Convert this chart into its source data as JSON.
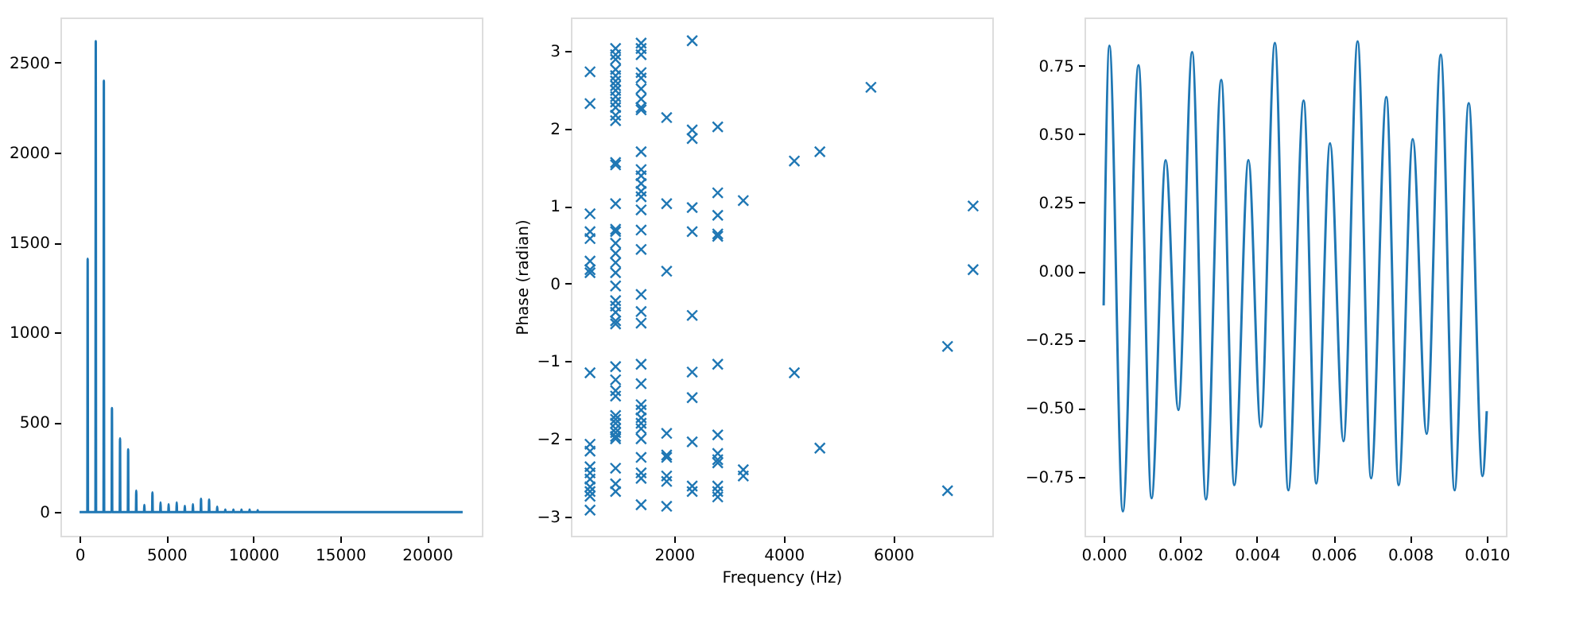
{
  "chart_data": [
    {
      "type": "line",
      "color": "#1f77b4",
      "marker": "none",
      "line_style": "solid",
      "grid": false,
      "x": [
        0,
        446,
        466,
        486,
        912,
        932,
        952,
        1378,
        1398,
        1418,
        1844,
        1864,
        1884,
        2310,
        2330,
        2350,
        2776,
        2796,
        2816,
        3242,
        3262,
        3282,
        3708,
        3728,
        3748,
        4174,
        4194,
        4214,
        4640,
        4660,
        4680,
        5106,
        5126,
        5146,
        5572,
        5592,
        5612,
        6038,
        6058,
        6078,
        6504,
        6524,
        6544,
        6970,
        6990,
        7010,
        7436,
        7456,
        7476,
        7902,
        7922,
        7942,
        8368,
        8388,
        8408,
        8834,
        8854,
        8874,
        9300,
        9320,
        9340,
        9766,
        9786,
        9806,
        10232,
        10252,
        10272,
        22050
      ],
      "values": [
        0,
        0,
        1410,
        0,
        0,
        2620,
        0,
        0,
        2400,
        0,
        0,
        580,
        0,
        0,
        410,
        0,
        0,
        350,
        0,
        0,
        120,
        0,
        0,
        40,
        0,
        0,
        110,
        0,
        0,
        55,
        0,
        0,
        45,
        0,
        0,
        55,
        0,
        0,
        35,
        0,
        0,
        45,
        0,
        0,
        75,
        0,
        0,
        70,
        0,
        0,
        30,
        0,
        0,
        15,
        0,
        0,
        15,
        0,
        0,
        15,
        0,
        0,
        15,
        0,
        0,
        12,
        0,
        0
      ],
      "xlim": [
        -1102,
        23152
      ],
      "ylim": [
        -131,
        2751
      ],
      "xticks": [
        0,
        5000,
        10000,
        15000,
        20000
      ],
      "yticks": [
        0,
        500,
        1000,
        1500,
        2000,
        2500
      ]
    },
    {
      "type": "scatter",
      "color": "#1f77b4",
      "marker": "cross",
      "grid": false,
      "xlabel": "Frequency (Hz)",
      "ylabel": "Phase (radian)",
      "x": [
        466,
        466,
        466,
        466,
        466,
        466,
        466,
        466,
        466,
        466,
        466,
        466,
        466,
        466,
        466,
        466,
        466,
        466,
        932,
        932,
        932,
        932,
        932,
        932,
        932,
        932,
        932,
        932,
        932,
        932,
        932,
        932,
        932,
        932,
        932,
        932,
        932,
        932,
        932,
        932,
        932,
        932,
        932,
        932,
        932,
        932,
        932,
        932,
        932,
        932,
        932,
        932,
        932,
        932,
        932,
        932,
        932,
        932,
        932,
        932,
        1398,
        1398,
        1398,
        1398,
        1398,
        1398,
        1398,
        1398,
        1398,
        1398,
        1398,
        1398,
        1398,
        1398,
        1398,
        1398,
        1398,
        1398,
        1398,
        1398,
        1398,
        1398,
        1398,
        1398,
        1398,
        1398,
        1398,
        1398,
        1398,
        1398,
        1398,
        1398,
        1398,
        1864,
        1864,
        1864,
        1864,
        1864,
        1864,
        1864,
        1864,
        1864,
        2330,
        2330,
        2330,
        2330,
        2330,
        2330,
        2330,
        2330,
        2330,
        2330,
        2330,
        2796,
        2796,
        2796,
        2796,
        2796,
        2796,
        2796,
        2796,
        2796,
        2796,
        2796,
        2796,
        2796,
        3262,
        3262,
        3262,
        4194,
        4194,
        4660,
        4660,
        5592,
        6990,
        6990,
        7456,
        7456
      ],
      "values": [
        2.73,
        2.32,
        0.9,
        0.67,
        0.58,
        0.29,
        0.18,
        0.14,
        -1.15,
        -2.07,
        -2.16,
        -2.36,
        -2.44,
        -2.52,
        -2.62,
        -2.68,
        -2.74,
        -2.92,
        3.03,
        2.95,
        2.89,
        2.76,
        2.68,
        2.61,
        2.55,
        2.49,
        2.41,
        2.34,
        2.27,
        2.17,
        2.1,
        1.56,
        1.53,
        1.03,
        0.7,
        0.67,
        0.52,
        0.39,
        0.27,
        0.14,
        -0.03,
        -0.22,
        -0.29,
        -0.37,
        -0.48,
        -0.52,
        -1.07,
        -1.24,
        -1.38,
        -1.45,
        -1.7,
        -1.75,
        -1.8,
        -1.87,
        -1.92,
        -1.97,
        -2.0,
        -2.38,
        -2.58,
        -2.68,
        3.1,
        3.03,
        2.95,
        2.72,
        2.65,
        2.51,
        2.38,
        2.27,
        2.24,
        1.7,
        1.47,
        1.39,
        1.29,
        1.19,
        1.12,
        0.95,
        0.69,
        0.44,
        -0.14,
        -0.36,
        -0.51,
        -1.04,
        -1.29,
        -1.56,
        -1.63,
        -1.73,
        -1.8,
        -1.87,
        -2.0,
        -2.24,
        -2.44,
        -2.51,
        -2.85,
        2.14,
        1.03,
        0.16,
        -1.93,
        -2.21,
        -2.24,
        -2.48,
        -2.55,
        -2.87,
        3.13,
        1.98,
        1.87,
        0.98,
        0.67,
        -0.41,
        -1.14,
        -1.47,
        -2.04,
        -2.61,
        -2.68,
        2.02,
        1.17,
        0.88,
        0.64,
        0.61,
        -1.04,
        -1.95,
        -2.19,
        -2.27,
        -2.31,
        -2.61,
        -2.68,
        -2.75,
        1.07,
        -2.4,
        -2.48,
        1.58,
        -1.15,
        1.7,
        -2.12,
        2.53,
        -0.81,
        -2.67,
        1.0,
        0.18
      ],
      "xlim": [
        116,
        7806
      ],
      "ylim": [
        -3.25,
        3.43
      ],
      "xticks": [
        2000,
        4000,
        6000
      ],
      "yticks": [
        {
          "value": -3,
          "label": "−3"
        },
        {
          "value": -2,
          "label": "−2"
        },
        {
          "value": -1,
          "label": "−1"
        },
        0,
        1,
        2,
        3
      ]
    },
    {
      "type": "line",
      "color": "#1f77b4",
      "marker": "none",
      "line_style": "solid",
      "grid": false,
      "x": [
        0,
        0.00015,
        0.0005,
        0.00091,
        0.00125,
        0.00162,
        0.00195,
        0.00231,
        0.00267,
        0.00307,
        0.00341,
        0.00378,
        0.0041,
        0.00447,
        0.00482,
        0.00522,
        0.00555,
        0.00591,
        0.00626,
        0.00663,
        0.00698,
        0.00738,
        0.0077,
        0.00807,
        0.00843,
        0.0088,
        0.00916,
        0.00953,
        0.00989,
        0.01
      ],
      "values": [
        -0.125,
        0.823,
        -0.877,
        0.752,
        -0.829,
        0.405,
        -0.507,
        0.8,
        -0.833,
        0.698,
        -0.781,
        0.405,
        -0.569,
        0.833,
        -0.8,
        0.623,
        -0.775,
        0.467,
        -0.621,
        0.839,
        -0.756,
        0.636,
        -0.781,
        0.482,
        -0.594,
        0.79,
        -0.8,
        0.613,
        -0.748,
        -0.511
      ],
      "xlim": [
        -0.0005,
        0.0105
      ],
      "ylim": [
        -0.966,
        0.926
      ],
      "xticks": [
        {
          "value": 0,
          "label": "0.000"
        },
        {
          "value": 0.002,
          "label": "0.002"
        },
        {
          "value": 0.004,
          "label": "0.004"
        },
        {
          "value": 0.006,
          "label": "0.006"
        },
        {
          "value": 0.008,
          "label": "0.008"
        },
        {
          "value": 0.01,
          "label": "0.010"
        }
      ],
      "yticks": [
        {
          "value": -0.75,
          "label": "−0.75"
        },
        {
          "value": -0.5,
          "label": "−0.50"
        },
        {
          "value": -0.25,
          "label": "−0.25"
        },
        {
          "value": 0,
          "label": "0.00"
        },
        {
          "value": 0.25,
          "label": "0.25"
        },
        {
          "value": 0.5,
          "label": "0.50"
        },
        {
          "value": 0.75,
          "label": "0.75"
        }
      ]
    }
  ]
}
